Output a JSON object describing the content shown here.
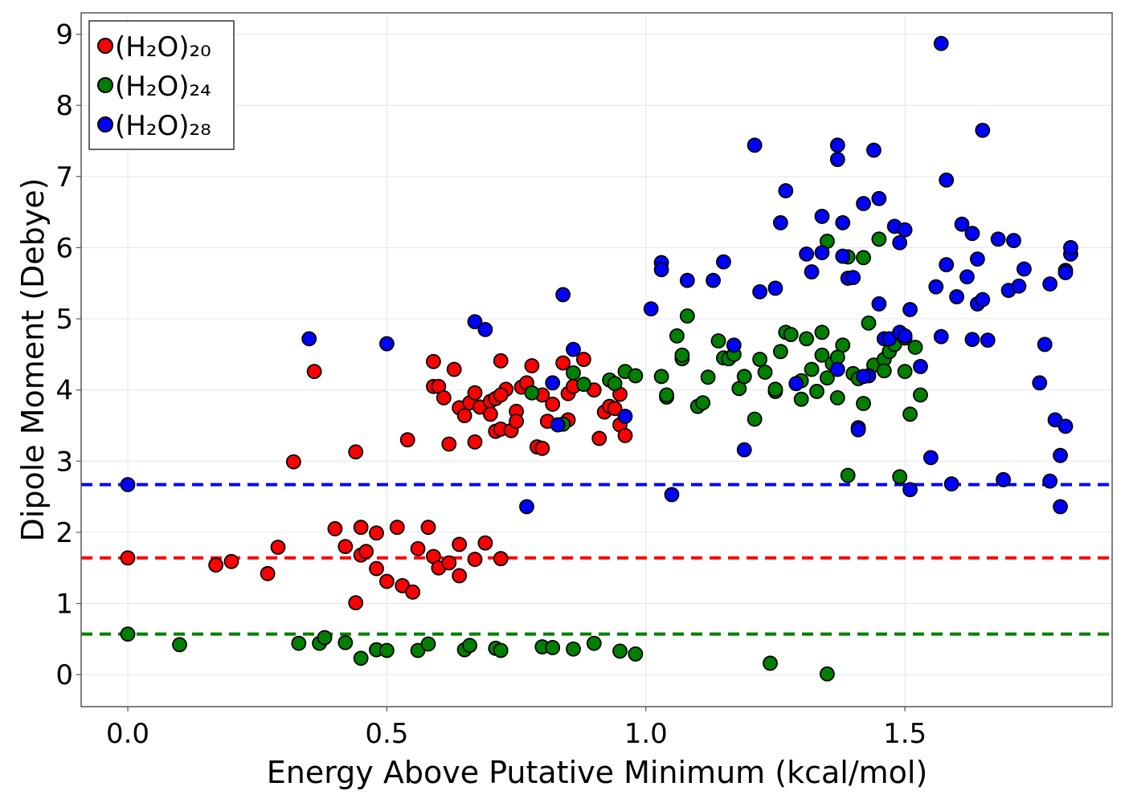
{
  "chart_data": {
    "type": "scatter",
    "title": "",
    "xlabel": "Energy Above Putative Minimum (kcal/mol)",
    "ylabel": "Dipole Moment (Debye)",
    "xlim": [
      -0.09,
      1.9
    ],
    "ylim": [
      -0.45,
      9.3
    ],
    "xticks": [
      0.0,
      0.5,
      1.0,
      1.5
    ],
    "xtick_labels": [
      "0.0",
      "0.5",
      "1.0",
      "1.5"
    ],
    "yticks": [
      0,
      1,
      2,
      3,
      4,
      5,
      6,
      7,
      8,
      9
    ],
    "ytick_labels": [
      "0",
      "1",
      "2",
      "3",
      "4",
      "5",
      "6",
      "7",
      "8",
      "9"
    ],
    "grid": true,
    "legend_position": "top-left",
    "series": [
      {
        "name": "(H₂O)₂₀",
        "color": "#ff0000",
        "reference_line": 1.64,
        "x": [
          0.0,
          0.17,
          0.2,
          0.27,
          0.29,
          0.32,
          0.36,
          0.4,
          0.42,
          0.44,
          0.45,
          0.45,
          0.46,
          0.48,
          0.48,
          0.5,
          0.52,
          0.53,
          0.55,
          0.56,
          0.58,
          0.59,
          0.6,
          0.62,
          0.64,
          0.64,
          0.67,
          0.69,
          0.72,
          0.44,
          0.54,
          0.59,
          0.59,
          0.6,
          0.61,
          0.62,
          0.63,
          0.64,
          0.65,
          0.66,
          0.67,
          0.67,
          0.68,
          0.7,
          0.7,
          0.71,
          0.71,
          0.72,
          0.72,
          0.73,
          0.74,
          0.75,
          0.76,
          0.77,
          0.78,
          0.79,
          0.8,
          0.81,
          0.82,
          0.84,
          0.85,
          0.85,
          0.86,
          0.88,
          0.9,
          0.91,
          0.92,
          0.93,
          0.94,
          0.95,
          0.95,
          0.96,
          0.72,
          0.75,
          0.8
        ],
        "y": [
          1.64,
          1.54,
          1.59,
          1.42,
          1.79,
          2.99,
          4.26,
          2.05,
          1.8,
          1.01,
          1.68,
          2.07,
          1.73,
          1.49,
          1.99,
          1.31,
          2.07,
          1.25,
          1.16,
          1.77,
          2.07,
          1.66,
          1.5,
          1.57,
          1.39,
          1.83,
          1.62,
          1.85,
          1.63,
          3.13,
          3.3,
          4.4,
          4.05,
          4.05,
          3.89,
          3.24,
          4.29,
          3.75,
          3.64,
          3.82,
          3.96,
          3.27,
          3.76,
          3.84,
          3.66,
          3.42,
          3.88,
          4.41,
          3.45,
          4.01,
          3.43,
          3.7,
          4.04,
          4.1,
          4.34,
          3.2,
          3.93,
          3.56,
          3.8,
          4.38,
          3.95,
          3.58,
          4.05,
          4.43,
          4.0,
          3.32,
          3.69,
          3.77,
          3.74,
          3.51,
          3.94,
          3.36,
          3.93,
          3.56,
          3.18
        ]
      },
      {
        "name": "(H₂O)₂₄",
        "color": "#008000",
        "reference_line": 0.57,
        "x": [
          0.0,
          0.1,
          0.33,
          0.37,
          0.38,
          0.42,
          0.45,
          0.48,
          0.5,
          0.56,
          0.58,
          0.65,
          0.66,
          0.71,
          0.72,
          0.8,
          0.82,
          0.86,
          0.9,
          0.95,
          0.98,
          1.24,
          1.35,
          0.78,
          0.84,
          0.86,
          0.88,
          0.93,
          0.96,
          0.98,
          1.03,
          1.04,
          1.06,
          1.07,
          1.08,
          1.1,
          1.11,
          1.12,
          1.14,
          1.15,
          1.16,
          1.18,
          1.19,
          1.21,
          1.22,
          1.23,
          1.25,
          1.26,
          1.27,
          1.28,
          1.3,
          1.31,
          1.32,
          1.33,
          1.34,
          1.35,
          1.36,
          1.37,
          1.38,
          1.39,
          1.4,
          1.41,
          1.42,
          1.43,
          1.44,
          1.45,
          1.46,
          1.47,
          1.48,
          1.49,
          1.5,
          1.51,
          1.52,
          1.53,
          1.39,
          1.42,
          1.46,
          1.5,
          1.34,
          1.3,
          1.25,
          1.17,
          1.07,
          1.04,
          0.94,
          1.35,
          1.37
        ],
        "y": [
          0.57,
          0.42,
          0.44,
          0.44,
          0.52,
          0.45,
          0.23,
          0.35,
          0.34,
          0.34,
          0.43,
          0.35,
          0.41,
          0.37,
          0.34,
          0.39,
          0.38,
          0.36,
          0.44,
          0.33,
          0.29,
          0.16,
          0.01,
          3.96,
          3.52,
          4.24,
          4.08,
          4.14,
          4.26,
          4.2,
          4.19,
          3.9,
          4.76,
          4.44,
          5.04,
          3.77,
          3.82,
          4.18,
          4.69,
          4.45,
          4.44,
          4.02,
          4.19,
          3.59,
          4.43,
          4.25,
          3.98,
          4.54,
          4.81,
          4.78,
          3.87,
          4.72,
          4.29,
          3.98,
          4.81,
          6.09,
          4.37,
          3.89,
          4.63,
          5.87,
          4.23,
          4.16,
          5.86,
          4.94,
          4.35,
          6.12,
          4.43,
          4.54,
          4.64,
          2.78,
          4.26,
          3.66,
          4.6,
          3.93,
          2.8,
          3.81,
          4.27,
          4.73,
          4.49,
          4.13,
          4.01,
          4.5,
          4.49,
          3.93,
          4.09,
          4.17,
          4.46
        ]
      },
      {
        "name": "(H₂O)₂₈",
        "color": "#0000ff",
        "reference_line": 2.67,
        "x": [
          0.0,
          0.35,
          0.5,
          0.67,
          0.69,
          0.77,
          0.82,
          0.83,
          0.84,
          0.86,
          0.96,
          1.01,
          1.03,
          1.03,
          1.05,
          1.08,
          1.13,
          1.15,
          1.17,
          1.19,
          1.21,
          1.22,
          1.25,
          1.26,
          1.27,
          1.29,
          1.31,
          1.32,
          1.34,
          1.34,
          1.37,
          1.37,
          1.38,
          1.38,
          1.39,
          1.4,
          1.41,
          1.41,
          1.42,
          1.43,
          1.44,
          1.45,
          1.45,
          1.46,
          1.47,
          1.48,
          1.49,
          1.49,
          1.5,
          1.5,
          1.51,
          1.51,
          1.53,
          1.55,
          1.56,
          1.57,
          1.57,
          1.58,
          1.58,
          1.59,
          1.6,
          1.61,
          1.62,
          1.63,
          1.63,
          1.64,
          1.64,
          1.65,
          1.65,
          1.66,
          1.68,
          1.69,
          1.7,
          1.71,
          1.72,
          1.73,
          1.76,
          1.77,
          1.78,
          1.78,
          1.79,
          1.8,
          1.8,
          1.81,
          1.81,
          1.82,
          1.82,
          1.81,
          1.42,
          1.37
        ],
        "y": [
          2.67,
          4.72,
          4.65,
          4.96,
          4.85,
          2.36,
          4.1,
          3.51,
          5.34,
          4.57,
          3.63,
          5.14,
          5.79,
          5.69,
          2.53,
          5.54,
          5.54,
          5.8,
          4.63,
          3.16,
          7.44,
          5.38,
          5.43,
          6.35,
          6.8,
          4.09,
          5.91,
          5.66,
          6.44,
          5.93,
          7.44,
          7.24,
          6.35,
          5.88,
          5.57,
          5.58,
          3.47,
          3.44,
          6.62,
          4.2,
          7.37,
          6.69,
          5.21,
          4.72,
          4.72,
          6.3,
          4.81,
          6.07,
          4.76,
          6.25,
          5.13,
          2.6,
          4.33,
          3.05,
          5.45,
          8.87,
          4.75,
          6.95,
          5.76,
          2.68,
          5.31,
          6.33,
          5.59,
          6.2,
          4.71,
          5.21,
          5.84,
          7.65,
          5.27,
          4.7,
          6.12,
          2.74,
          5.4,
          6.1,
          5.46,
          5.7,
          4.1,
          4.64,
          5.49,
          2.72,
          3.58,
          3.08,
          2.36,
          5.68,
          5.65,
          5.91,
          6.0,
          3.49,
          4.19,
          4.29
        ]
      }
    ]
  }
}
